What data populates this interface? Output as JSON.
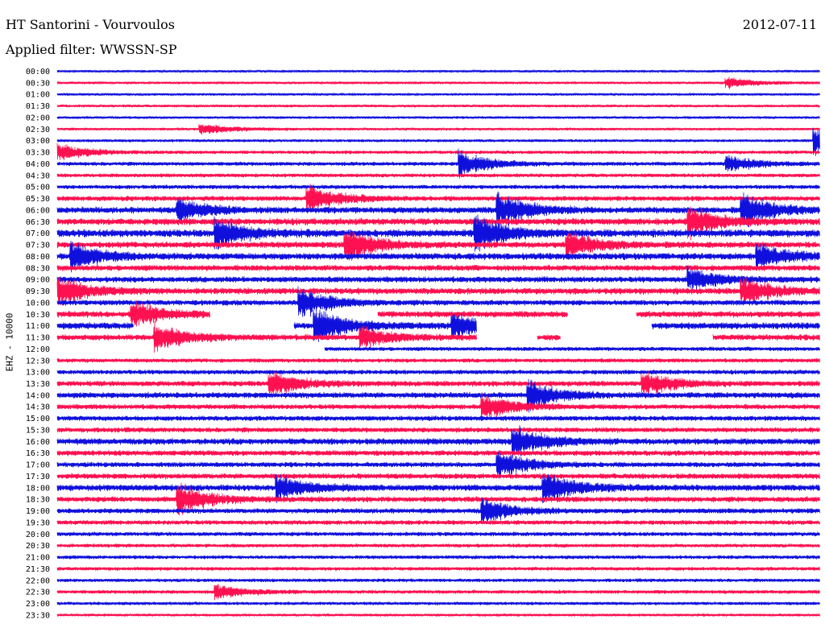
{
  "header": {
    "station": "HT Santorini - Vourvoulos",
    "date": "2012-07-11",
    "filter": "Applied filter: WWSSN-SP",
    "channel": "EHZ - 10000"
  },
  "colors": {
    "even_trace": "#1010dd",
    "odd_trace": "#ff1050",
    "background": "#ffffff"
  },
  "chart_data": {
    "type": "line",
    "title": "HT Santorini - Vourvoulos",
    "ylabel": "EHZ - 10000",
    "xlabel": "",
    "legend": "none",
    "grid": false,
    "rows": [
      "00:00",
      "00:30",
      "01:00",
      "01:30",
      "02:00",
      "02:30",
      "03:00",
      "03:30",
      "04:00",
      "04:30",
      "05:00",
      "05:30",
      "06:00",
      "06:30",
      "07:00",
      "07:30",
      "08:00",
      "08:30",
      "09:00",
      "09:30",
      "10:00",
      "10:30",
      "11:00",
      "11:30",
      "12:00",
      "12:30",
      "13:00",
      "13:30",
      "14:00",
      "14:30",
      "15:00",
      "15:30",
      "16:00",
      "16:30",
      "17:00",
      "17:30",
      "18:00",
      "18:30",
      "19:00",
      "19:30",
      "20:00",
      "20:30",
      "21:00",
      "21:30",
      "22:00",
      "22:30",
      "23:00",
      "23:30"
    ],
    "row_duration_min": 30,
    "row_activity": [
      0.1,
      0.12,
      0.1,
      0.14,
      0.12,
      0.14,
      0.16,
      0.22,
      0.28,
      0.26,
      0.3,
      0.4,
      0.55,
      0.6,
      0.7,
      0.55,
      0.6,
      0.5,
      0.5,
      0.55,
      0.45,
      0.55,
      0.6,
      0.5,
      0.3,
      0.3,
      0.35,
      0.45,
      0.5,
      0.4,
      0.4,
      0.4,
      0.55,
      0.45,
      0.4,
      0.45,
      0.55,
      0.45,
      0.4,
      0.35,
      0.3,
      0.25,
      0.25,
      0.25,
      0.22,
      0.25,
      0.2,
      0.15
    ],
    "events": [
      {
        "row": "00:30",
        "t": 0.88,
        "amp": 0.6
      },
      {
        "row": "02:30",
        "t": 0.19,
        "amp": 0.6
      },
      {
        "row": "03:00",
        "t": 0.995,
        "amp": 1.6
      },
      {
        "row": "03:30",
        "t": 0.0,
        "amp": 1.0
      },
      {
        "row": "04:00",
        "t": 0.53,
        "amp": 1.5
      },
      {
        "row": "04:00",
        "t": 0.88,
        "amp": 1.0
      },
      {
        "row": "05:30",
        "t": 0.33,
        "amp": 1.6
      },
      {
        "row": "06:00",
        "t": 0.16,
        "amp": 1.3
      },
      {
        "row": "06:00",
        "t": 0.58,
        "amp": 2.0
      },
      {
        "row": "06:00",
        "t": 0.9,
        "amp": 2.0
      },
      {
        "row": "06:30",
        "t": 0.83,
        "amp": 1.8
      },
      {
        "row": "07:00",
        "t": 0.21,
        "amp": 1.6
      },
      {
        "row": "07:00",
        "t": 0.55,
        "amp": 2.0
      },
      {
        "row": "07:30",
        "t": 0.38,
        "amp": 1.8
      },
      {
        "row": "07:30",
        "t": 0.67,
        "amp": 1.5
      },
      {
        "row": "08:00",
        "t": 0.02,
        "amp": 1.5
      },
      {
        "row": "08:00",
        "t": 0.92,
        "amp": 1.4
      },
      {
        "row": "09:00",
        "t": 0.83,
        "amp": 1.3
      },
      {
        "row": "09:30",
        "t": 0.0,
        "amp": 1.8
      },
      {
        "row": "09:30",
        "t": 0.9,
        "amp": 1.6
      },
      {
        "row": "10:00",
        "t": 0.32,
        "amp": 1.8
      },
      {
        "row": "10:30",
        "t": 0.1,
        "amp": 1.5
      },
      {
        "row": "11:00",
        "t": 0.34,
        "amp": 2.0
      },
      {
        "row": "11:00",
        "t": 0.52,
        "amp": 1.6
      },
      {
        "row": "11:30",
        "t": 0.13,
        "amp": 1.6
      },
      {
        "row": "11:30",
        "t": 0.4,
        "amp": 1.2
      },
      {
        "row": "13:30",
        "t": 0.28,
        "amp": 1.5
      },
      {
        "row": "13:30",
        "t": 0.77,
        "amp": 1.4
      },
      {
        "row": "14:00",
        "t": 0.62,
        "amp": 1.6
      },
      {
        "row": "14:30",
        "t": 0.56,
        "amp": 1.5
      },
      {
        "row": "16:00",
        "t": 0.6,
        "amp": 1.8
      },
      {
        "row": "17:00",
        "t": 0.58,
        "amp": 1.5
      },
      {
        "row": "18:00",
        "t": 0.64,
        "amp": 2.0
      },
      {
        "row": "18:00",
        "t": 0.29,
        "amp": 1.4
      },
      {
        "row": "18:30",
        "t": 0.16,
        "amp": 1.8
      },
      {
        "row": "19:00",
        "t": 0.56,
        "amp": 1.5
      },
      {
        "row": "22:30",
        "t": 0.21,
        "amp": 0.8
      }
    ],
    "gaps": [
      {
        "row": "10:30",
        "t_start": 0.2,
        "t_end": 0.42
      },
      {
        "row": "10:30",
        "t_start": 0.67,
        "t_end": 0.76
      },
      {
        "row": "11:00",
        "t_start": 0.1,
        "t_end": 0.31
      },
      {
        "row": "11:00",
        "t_start": 0.55,
        "t_end": 0.78
      },
      {
        "row": "11:30",
        "t_start": 0.55,
        "t_end": 0.63
      },
      {
        "row": "11:30",
        "t_start": 0.66,
        "t_end": 0.86
      },
      {
        "row": "12:00",
        "t_start": 0.0,
        "t_end": 0.35
      }
    ]
  }
}
